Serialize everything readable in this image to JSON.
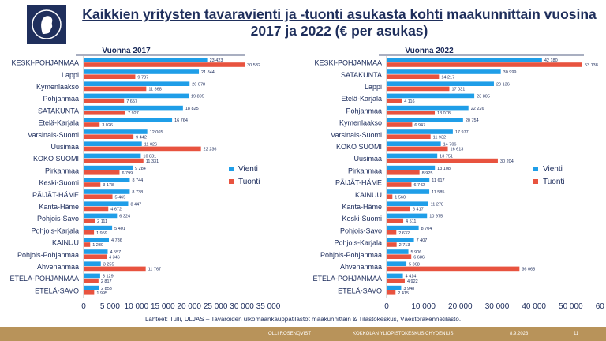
{
  "header": {
    "title_underlined": "Kaikkien yritysten tavaravienti ja -tuonti asukasta kohti",
    "title_rest": " maakunnittain vuosina 2017 ja 2022 (€ per asukas)"
  },
  "colors": {
    "vienti": "#1f9ee8",
    "tuonti": "#e8533f",
    "text": "#1a2a5a",
    "brand": "#1f2f5c",
    "footer_bg": "#b8935a"
  },
  "chart_data": [
    {
      "type": "bar",
      "orientation": "horizontal",
      "title": "Vuonna 2017",
      "categories": [
        "KESKI-POHJANMAA",
        "Lappi",
        "Kymenlaakso",
        "Pohjanmaa",
        "SATAKUNTA",
        "Etelä-Karjala",
        "Varsinais-Suomi",
        "Uusimaa",
        "KOKO SUOMI",
        "Pirkanmaa",
        "Keski-Suomi",
        "PÄIJÄT-HÄME",
        "Kanta-Häme",
        "Pohjois-Savo",
        "Pohjois-Karjala",
        "KAINUU",
        "Pohjois-Pohjanmaa",
        "Ahvenanmaa",
        "ETELÄ-POHJANMAA",
        "ETELÄ-SAVO"
      ],
      "series": [
        {
          "name": "Vienti",
          "values": [
            23423,
            21844,
            20078,
            19895,
            18825,
            16764,
            12065,
            11026,
            10831,
            9284,
            8744,
            8738,
            8447,
            6324,
            5401,
            4786,
            4557,
            3255,
            3129,
            2853
          ],
          "labels": [
            "23 423",
            "21 844",
            "20 078",
            "19 895",
            "18 825",
            "16 764",
            "12 065",
            "11 026",
            "10 831",
            "9 284",
            "8 744",
            "8 738",
            "8 447",
            "6 324",
            "5 401",
            "4 786",
            "4 557",
            "3 255",
            "3 129",
            "2 853"
          ]
        },
        {
          "name": "Tuonti",
          "values": [
            30532,
            9787,
            11868,
            7657,
            7927,
            3026,
            9442,
            22236,
            11331,
            6799,
            3178,
            5465,
            4672,
            2111,
            1959,
            1230,
            4346,
            11767,
            2817,
            1995
          ],
          "labels": [
            "30 532",
            "9 787",
            "11 868",
            "7 657",
            "7 927",
            "3 026",
            "9 442",
            "22 236",
            "11 331",
            "6 799",
            "3 178",
            "5 465",
            "4 672",
            "2 111",
            "1 959",
            "1 230",
            "4 346",
            "11 767",
            "2 817",
            "1 995"
          ]
        }
      ],
      "xlim": [
        0,
        35000
      ],
      "ticks": [
        0,
        5000,
        10000,
        15000,
        20000,
        25000,
        30000,
        35000
      ],
      "tick_labels": [
        "0",
        "5 000",
        "10 000",
        "15 000",
        "20 000",
        "25 000",
        "30 000",
        "35 000"
      ],
      "legend": [
        "Vienti",
        "Tuonti"
      ],
      "legend_position": "right"
    },
    {
      "type": "bar",
      "orientation": "horizontal",
      "title": "Vuonna 2022",
      "categories": [
        "KESKI-POHJANMAA",
        "SATAKUNTA",
        "Lappi",
        "Etelä-Karjala",
        "Pohjanmaa",
        "Kymenlaakso",
        "Varsinais-Suomi",
        "KOKO SUOMI",
        "Uusimaa",
        "Pirkanmaa",
        "PÄIJÄT-HÄME",
        "KAINUU",
        "Kanta-Häme",
        "Keski-Suomi",
        "Pohjois-Savo",
        "Pohjois-Karjala",
        "Pohjois-Pohjanmaa",
        "Ahvenanmaa",
        "ETELÄ-POHJANMAA",
        "ETELÄ-SAVO"
      ],
      "series": [
        {
          "name": "Vienti",
          "values": [
            42180,
            30999,
            29136,
            23805,
            22226,
            20754,
            17977,
            14706,
            13751,
            13108,
            11617,
            11585,
            11278,
            10975,
            8704,
            7407,
            5906,
            5368,
            4414,
            3948
          ],
          "labels": [
            "42 180",
            "30 999",
            "29 136",
            "23 805",
            "22 226",
            "20 754",
            "17 977",
            "14 706",
            "13 751",
            "13 108",
            "11 617",
            "11 585",
            "11 278",
            "10 975",
            "8 704",
            "7 407",
            "5 906",
            "5 368",
            "4 414",
            "3 948"
          ]
        },
        {
          "name": "Tuonti",
          "values": [
            53138,
            14217,
            17031,
            4116,
            13078,
            6947,
            11932,
            16613,
            30204,
            8925,
            6742,
            1560,
            6417,
            4511,
            2632,
            2713,
            6686,
            36068,
            4922,
            2415
          ],
          "labels": [
            "53 138",
            "14 217",
            "17 031",
            "4 116",
            "13 078",
            "6 947",
            "11 932",
            "16 613",
            "30 204",
            "8 925",
            "6 742",
            "1 560",
            "6 417",
            "4 511",
            "2 632",
            "2 713",
            "6 686",
            "36 068",
            "4 922",
            "2 415"
          ]
        }
      ],
      "xlim": [
        0,
        60000
      ],
      "ticks": [
        0,
        10000,
        20000,
        30000,
        40000,
        50000,
        60000
      ],
      "tick_labels": [
        "0",
        "10 000",
        "20 000",
        "30 000",
        "40 000",
        "50 000",
        "60 000"
      ],
      "legend": [
        "Vienti",
        "Tuonti"
      ],
      "legend_position": "right"
    }
  ],
  "source": "Lähteet: Tulli, ULJAS – Tavaroiden ulkomaankauppatilastot maakunnittain & Tilastokeskus, Väestörakennetilasto.",
  "footer": {
    "author": "OLLI ROSENQVIST",
    "org": "KOKKOLAN YLIOPISTOKESKUS CHYDENIUS",
    "date": "8.9.2023",
    "page": "11"
  }
}
